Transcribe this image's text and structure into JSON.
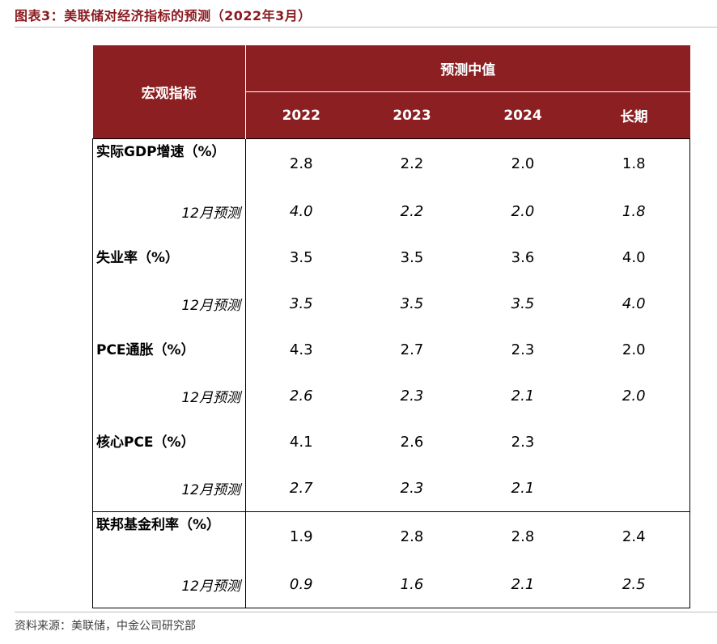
{
  "title": "图表3：美联储对经济指标的预测（2022年3月）",
  "table": {
    "indicator_header": "宏观指标",
    "group_header": "预测中值",
    "year_headers": [
      "2022",
      "2023",
      "2024",
      "长期"
    ],
    "rows": [
      {
        "label": "实际GDP增速（%）",
        "values": [
          "2.8",
          "2.2",
          "2.0",
          "1.8"
        ]
      },
      {
        "label": "12月预测",
        "values": [
          "4.0",
          "2.2",
          "2.0",
          "1.8"
        ]
      },
      {
        "label": "失业率（%）",
        "values": [
          "3.5",
          "3.5",
          "3.6",
          "4.0"
        ]
      },
      {
        "label": "12月预测",
        "values": [
          "3.5",
          "3.5",
          "3.5",
          "4.0"
        ]
      },
      {
        "label": "PCE通胀（%）",
        "values": [
          "4.3",
          "2.7",
          "2.3",
          "2.0"
        ]
      },
      {
        "label": "12月预测",
        "values": [
          "2.6",
          "2.3",
          "2.1",
          "2.0"
        ]
      },
      {
        "label": "核心PCE（%）",
        "values": [
          "4.1",
          "2.6",
          "2.3",
          ""
        ]
      },
      {
        "label": "12月预测",
        "values": [
          "2.7",
          "2.3",
          "2.1",
          ""
        ]
      },
      {
        "label": "联邦基金利率（%）",
        "values": [
          "1.9",
          "2.8",
          "2.8",
          "2.4"
        ]
      },
      {
        "label": "12月预测",
        "values": [
          "0.9",
          "1.6",
          "2.1",
          "2.5"
        ]
      }
    ]
  },
  "source": "资料来源：美联储，中金公司研究部",
  "colors": {
    "header_bg": "#8b1f22",
    "title": "#8b1a1f"
  }
}
